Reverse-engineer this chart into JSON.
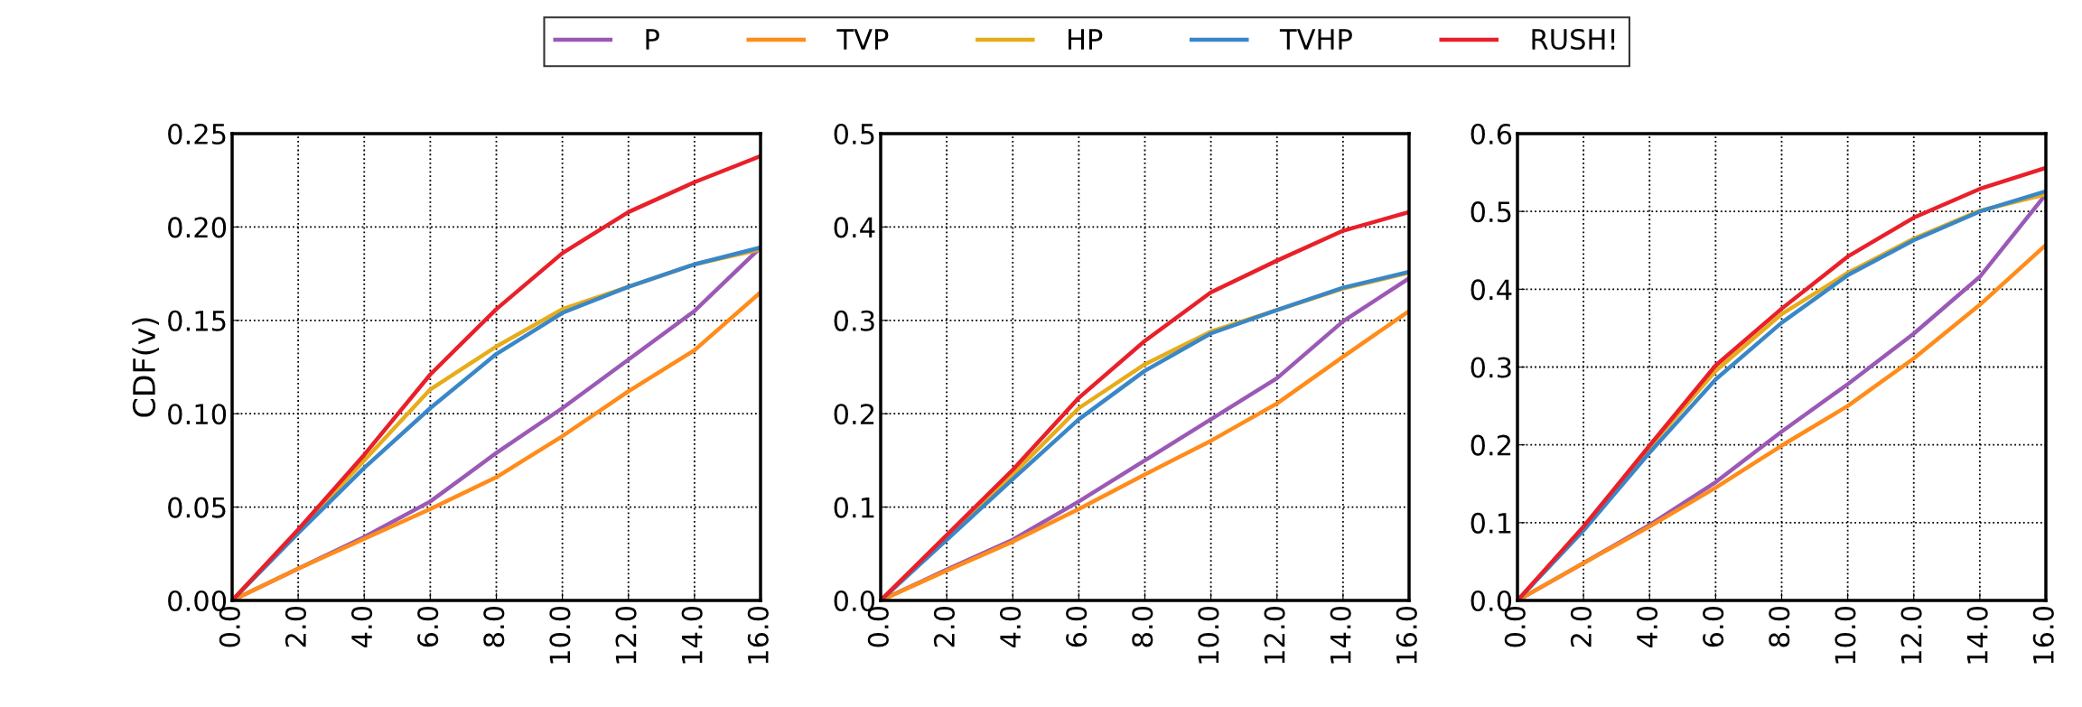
{
  "chart_data": [
    {
      "type": "line",
      "ylabel": "CDF(v)",
      "x": [
        0,
        2,
        4,
        6,
        8,
        10,
        12,
        14,
        16
      ],
      "xlim": [
        0,
        16
      ],
      "xticks": [
        {
          "value": 0,
          "label": "0.0"
        },
        {
          "value": 2,
          "label": "2.0"
        },
        {
          "value": 4,
          "label": "4.0"
        },
        {
          "value": 6,
          "label": "6.0"
        },
        {
          "value": 8,
          "label": "8.0"
        },
        {
          "value": 10,
          "label": "10.0"
        },
        {
          "value": 12,
          "label": "12.0"
        },
        {
          "value": 14,
          "label": "14.0"
        },
        {
          "value": 16,
          "label": "16.0"
        }
      ],
      "ylim": [
        0,
        0.25
      ],
      "yticks": [
        {
          "value": 0,
          "label": "0.00"
        },
        {
          "value": 0.05,
          "label": "0.05"
        },
        {
          "value": 0.1,
          "label": "0.10"
        },
        {
          "value": 0.15,
          "label": "0.15"
        },
        {
          "value": 0.2,
          "label": "0.20"
        },
        {
          "value": 0.25,
          "label": "0.25"
        }
      ],
      "grid": true,
      "legend": "top",
      "series": [
        {
          "name": "P",
          "color": "#9b59b6",
          "values": [
            0,
            0.017,
            0.034,
            0.053,
            0.079,
            0.103,
            0.129,
            0.155,
            0.189
          ]
        },
        {
          "name": "TVP",
          "color": "#ff8c1a",
          "values": [
            0,
            0.017,
            0.033,
            0.049,
            0.066,
            0.088,
            0.112,
            0.134,
            0.165
          ]
        },
        {
          "name": "HP",
          "color": "#e6ac1a",
          "values": [
            0,
            0.037,
            0.075,
            0.113,
            0.136,
            0.156,
            0.168,
            0.18,
            0.188
          ]
        },
        {
          "name": "TVHP",
          "color": "#3a87c8",
          "values": [
            0,
            0.036,
            0.071,
            0.103,
            0.132,
            0.154,
            0.168,
            0.18,
            0.189
          ]
        },
        {
          "name": "RUSH!",
          "color": "#e8202a",
          "values": [
            0,
            0.038,
            0.078,
            0.121,
            0.156,
            0.186,
            0.208,
            0.224,
            0.238
          ]
        }
      ]
    },
    {
      "type": "line",
      "x": [
        0,
        2,
        4,
        6,
        8,
        10,
        12,
        14,
        16
      ],
      "xlim": [
        0,
        16
      ],
      "xticks": [
        {
          "value": 0,
          "label": "0.0"
        },
        {
          "value": 2,
          "label": "2.0"
        },
        {
          "value": 4,
          "label": "4.0"
        },
        {
          "value": 6,
          "label": "6.0"
        },
        {
          "value": 8,
          "label": "8.0"
        },
        {
          "value": 10,
          "label": "10.0"
        },
        {
          "value": 12,
          "label": "12.0"
        },
        {
          "value": 14,
          "label": "14.0"
        },
        {
          "value": 16,
          "label": "16.0"
        }
      ],
      "ylim": [
        0,
        0.5
      ],
      "yticks": [
        {
          "value": 0,
          "label": "0.0"
        },
        {
          "value": 0.1,
          "label": "0.1"
        },
        {
          "value": 0.2,
          "label": "0.2"
        },
        {
          "value": 0.3,
          "label": "0.3"
        },
        {
          "value": 0.4,
          "label": "0.4"
        },
        {
          "value": 0.5,
          "label": "0.5"
        }
      ],
      "grid": true,
      "series": [
        {
          "color": "#9b59b6",
          "values": [
            0,
            0.033,
            0.065,
            0.106,
            0.15,
            0.194,
            0.238,
            0.299,
            0.345
          ]
        },
        {
          "color": "#ff8c1a",
          "values": [
            0,
            0.032,
            0.063,
            0.098,
            0.135,
            0.171,
            0.211,
            0.261,
            0.31
          ]
        },
        {
          "color": "#e6ac1a",
          "values": [
            0,
            0.067,
            0.135,
            0.206,
            0.253,
            0.288,
            0.311,
            0.334,
            0.351
          ]
        },
        {
          "color": "#3a87c8",
          "values": [
            0,
            0.065,
            0.13,
            0.194,
            0.246,
            0.286,
            0.311,
            0.335,
            0.352
          ]
        },
        {
          "color": "#e8202a",
          "values": [
            0,
            0.07,
            0.14,
            0.217,
            0.278,
            0.33,
            0.364,
            0.396,
            0.416
          ]
        }
      ]
    },
    {
      "type": "line",
      "x": [
        0,
        2,
        4,
        6,
        8,
        10,
        12,
        14,
        16
      ],
      "xlim": [
        0,
        16
      ],
      "xticks": [
        {
          "value": 0,
          "label": "0.0"
        },
        {
          "value": 2,
          "label": "2.0"
        },
        {
          "value": 4,
          "label": "4.0"
        },
        {
          "value": 6,
          "label": "6.0"
        },
        {
          "value": 8,
          "label": "8.0"
        },
        {
          "value": 10,
          "label": "10.0"
        },
        {
          "value": 12,
          "label": "12.0"
        },
        {
          "value": 14,
          "label": "14.0"
        },
        {
          "value": 16,
          "label": "16.0"
        }
      ],
      "ylim": [
        0,
        0.6
      ],
      "yticks": [
        {
          "value": 0,
          "label": "0.0"
        },
        {
          "value": 0.1,
          "label": "0.1"
        },
        {
          "value": 0.2,
          "label": "0.2"
        },
        {
          "value": 0.3,
          "label": "0.3"
        },
        {
          "value": 0.4,
          "label": "0.4"
        },
        {
          "value": 0.5,
          "label": "0.5"
        },
        {
          "value": 0.6,
          "label": "0.6"
        }
      ],
      "grid": true,
      "series": [
        {
          "color": "#9b59b6",
          "values": [
            0,
            0.048,
            0.097,
            0.152,
            0.217,
            0.278,
            0.343,
            0.416,
            0.522
          ]
        },
        {
          "color": "#ff8c1a",
          "values": [
            0,
            0.048,
            0.095,
            0.145,
            0.199,
            0.25,
            0.311,
            0.38,
            0.457
          ]
        },
        {
          "color": "#e6ac1a",
          "values": [
            0,
            0.093,
            0.197,
            0.295,
            0.368,
            0.421,
            0.465,
            0.501,
            0.522
          ]
        },
        {
          "color": "#3a87c8",
          "values": [
            0,
            0.09,
            0.19,
            0.284,
            0.357,
            0.418,
            0.463,
            0.5,
            0.526
          ]
        },
        {
          "color": "#e8202a",
          "values": [
            0,
            0.095,
            0.199,
            0.302,
            0.375,
            0.442,
            0.492,
            0.529,
            0.556
          ]
        }
      ]
    }
  ]
}
